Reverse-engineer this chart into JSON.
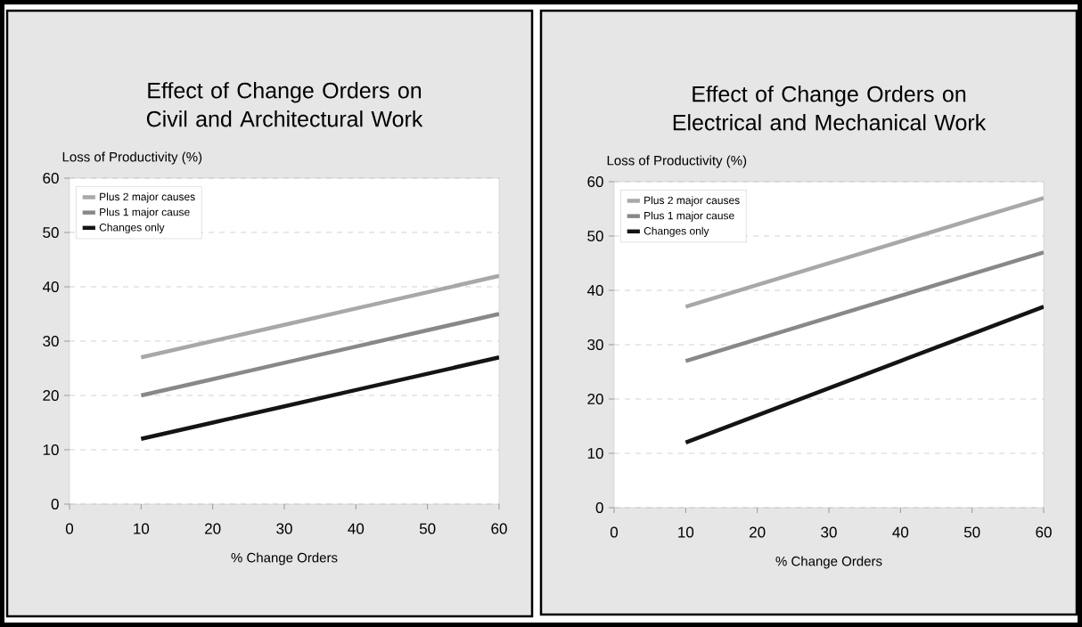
{
  "chart_data": [
    {
      "type": "line",
      "title": "Effect of Change Orders on Civil and Architectural Work",
      "ylabel": "Loss of Productivity (%)",
      "xlabel": "% Change Orders",
      "x": [
        10,
        20,
        30,
        40,
        50,
        60
      ],
      "xlim": [
        0,
        60
      ],
      "ylim": [
        0,
        60
      ],
      "xticks": [
        0,
        10,
        20,
        30,
        40,
        50,
        60
      ],
      "yticks": [
        0,
        10,
        20,
        30,
        40,
        50,
        60
      ],
      "grid": "y",
      "legend": "top left",
      "marker": "none",
      "series": [
        {
          "name": "Plus 2 major causes",
          "color": "#a8a8a8",
          "values": [
            27,
            30,
            33,
            36,
            39,
            42
          ]
        },
        {
          "name": "Plus 1 major cause",
          "color": "#888888",
          "values": [
            20,
            23,
            26,
            29,
            32,
            35
          ]
        },
        {
          "name": "Changes only",
          "color": "#141414",
          "values": [
            12,
            15,
            18,
            21,
            24,
            27
          ]
        }
      ]
    },
    {
      "type": "line",
      "title": "Effect of Change Orders on Electrical and Mechanical Work",
      "ylabel": "Loss of Productivity (%)",
      "xlabel": "% Change Orders",
      "x": [
        10,
        20,
        30,
        40,
        50,
        60
      ],
      "xlim": [
        0,
        60
      ],
      "ylim": [
        0,
        60
      ],
      "xticks": [
        0,
        10,
        20,
        30,
        40,
        50,
        60
      ],
      "yticks": [
        0,
        10,
        20,
        30,
        40,
        50,
        60
      ],
      "grid": "y",
      "legend": "top left",
      "marker": "none",
      "series": [
        {
          "name": "Plus 2 major causes",
          "color": "#a8a8a8",
          "values": [
            37,
            41,
            45,
            49,
            53,
            57
          ]
        },
        {
          "name": "Plus 1 major cause",
          "color": "#888888",
          "values": [
            27,
            31,
            35,
            39,
            43,
            47
          ]
        },
        {
          "name": "Changes only",
          "color": "#141414",
          "values": [
            12,
            17,
            22,
            27,
            32,
            37
          ]
        }
      ]
    }
  ]
}
